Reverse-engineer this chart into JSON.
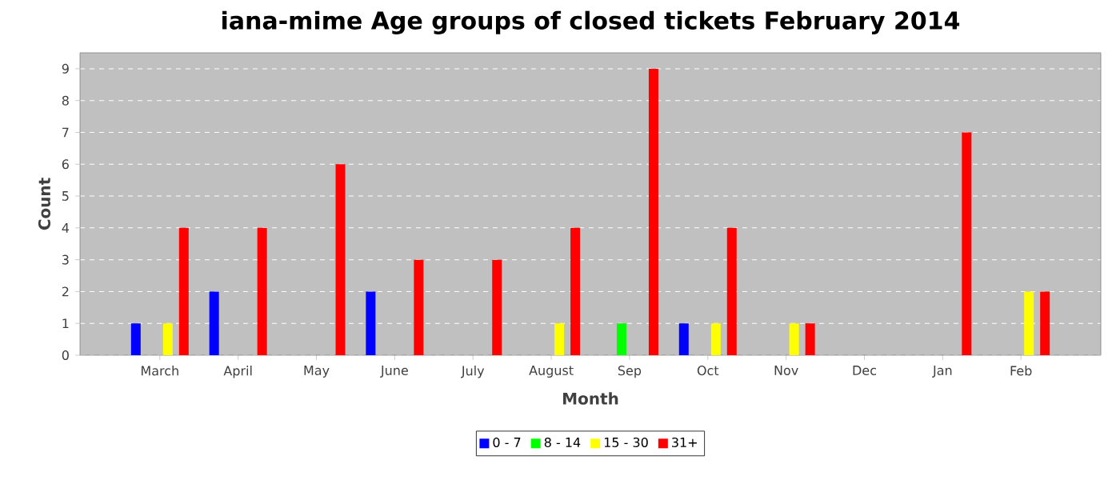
{
  "chart_data": {
    "type": "bar",
    "title": "iana-mime Age groups of closed tickets February 2014",
    "xlabel": "Month",
    "ylabel": "Count",
    "categories": [
      "March",
      "April",
      "May",
      "June",
      "July",
      "August",
      "Sep",
      "Oct",
      "Nov",
      "Dec",
      "Jan",
      "Feb"
    ],
    "series": [
      {
        "name": "0 - 7",
        "color": "#0000ff",
        "values": [
          1,
          2,
          0,
          2,
          0,
          0,
          0,
          1,
          0,
          0,
          0,
          0
        ]
      },
      {
        "name": "8 - 14",
        "color": "#00ff00",
        "values": [
          0,
          0,
          0,
          0,
          0,
          0,
          1,
          0,
          0,
          0,
          0,
          0
        ]
      },
      {
        "name": "15 - 30",
        "color": "#ffff00",
        "values": [
          1,
          0,
          0,
          0,
          0,
          1,
          0,
          1,
          1,
          0,
          0,
          2
        ]
      },
      {
        "name": "31+",
        "color": "#ff0000",
        "values": [
          4,
          4,
          6,
          3,
          3,
          4,
          9,
          4,
          1,
          0,
          7,
          2
        ]
      }
    ],
    "ylim": [
      0,
      9.5
    ],
    "yticks": [
      0,
      1,
      2,
      3,
      4,
      5,
      6,
      7,
      8,
      9
    ],
    "grid": "y",
    "legend": "bottom"
  }
}
